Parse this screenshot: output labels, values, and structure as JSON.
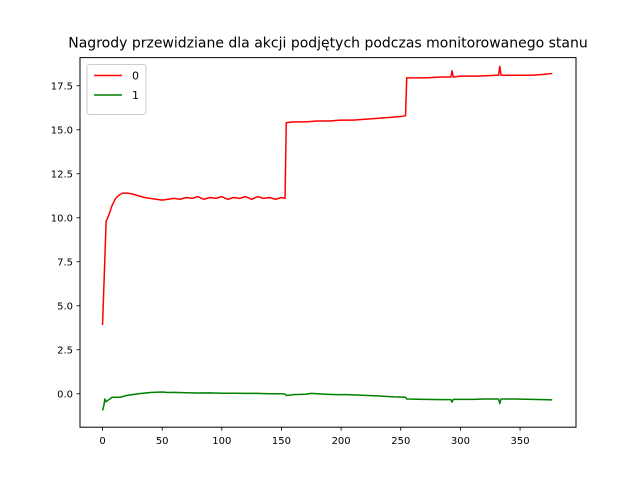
{
  "chart_data": {
    "type": "line",
    "title": "Nagrody przewidziane dla akcji podjętych podczas monitorowanego stanu",
    "xlabel": "",
    "ylabel": "",
    "xlim": [
      -18.9,
      396.9
    ],
    "ylim": [
      -1.9,
      19.1
    ],
    "xticks": [
      0,
      50,
      100,
      150,
      200,
      250,
      300,
      350
    ],
    "yticks": [
      0.0,
      2.5,
      5.0,
      7.5,
      10.0,
      12.5,
      15.0,
      17.5
    ],
    "ytick_labels": [
      "0.0",
      "2.5",
      "5.0",
      "7.5",
      "10.0",
      "12.5",
      "15.0",
      "17.5"
    ],
    "grid": false,
    "legend_position": "top-left",
    "series": [
      {
        "name": "0",
        "color": "#ff0000",
        "points": [
          [
            0,
            3.9
          ],
          [
            2,
            7.8
          ],
          [
            3,
            9.8
          ],
          [
            5,
            10.1
          ],
          [
            8,
            10.7
          ],
          [
            11,
            11.1
          ],
          [
            14,
            11.3
          ],
          [
            17,
            11.4
          ],
          [
            21,
            11.4
          ],
          [
            25,
            11.35
          ],
          [
            30,
            11.25
          ],
          [
            35,
            11.15
          ],
          [
            40,
            11.1
          ],
          [
            45,
            11.05
          ],
          [
            50,
            11.0
          ],
          [
            55,
            11.05
          ],
          [
            60,
            11.1
          ],
          [
            65,
            11.05
          ],
          [
            70,
            11.15
          ],
          [
            75,
            11.1
          ],
          [
            80,
            11.2
          ],
          [
            85,
            11.05
          ],
          [
            90,
            11.15
          ],
          [
            95,
            11.1
          ],
          [
            100,
            11.2
          ],
          [
            105,
            11.05
          ],
          [
            110,
            11.15
          ],
          [
            115,
            11.1
          ],
          [
            120,
            11.2
          ],
          [
            125,
            11.05
          ],
          [
            130,
            11.2
          ],
          [
            135,
            11.1
          ],
          [
            140,
            11.15
          ],
          [
            145,
            11.05
          ],
          [
            150,
            11.15
          ],
          [
            153,
            11.1
          ],
          [
            154,
            15.4
          ],
          [
            160,
            15.45
          ],
          [
            170,
            15.45
          ],
          [
            180,
            15.5
          ],
          [
            190,
            15.5
          ],
          [
            200,
            15.55
          ],
          [
            210,
            15.55
          ],
          [
            220,
            15.6
          ],
          [
            230,
            15.65
          ],
          [
            240,
            15.7
          ],
          [
            250,
            15.75
          ],
          [
            254,
            15.8
          ],
          [
            255,
            17.95
          ],
          [
            270,
            17.95
          ],
          [
            285,
            18.0
          ],
          [
            292,
            18.0
          ],
          [
            293,
            18.35
          ],
          [
            294,
            18.0
          ],
          [
            300,
            18.05
          ],
          [
            315,
            18.05
          ],
          [
            330,
            18.1
          ],
          [
            332,
            18.1
          ],
          [
            333,
            18.6
          ],
          [
            334,
            18.1
          ],
          [
            345,
            18.1
          ],
          [
            360,
            18.1
          ],
          [
            370,
            18.15
          ],
          [
            377,
            18.2
          ]
        ]
      },
      {
        "name": "1",
        "color": "#008000",
        "points": [
          [
            0,
            -0.95
          ],
          [
            1,
            -0.7
          ],
          [
            2,
            -0.3
          ],
          [
            3,
            -0.45
          ],
          [
            5,
            -0.35
          ],
          [
            8,
            -0.2
          ],
          [
            15,
            -0.2
          ],
          [
            20,
            -0.1
          ],
          [
            30,
            0.0
          ],
          [
            40,
            0.07
          ],
          [
            50,
            0.1
          ],
          [
            55,
            0.07
          ],
          [
            60,
            0.08
          ],
          [
            70,
            0.06
          ],
          [
            80,
            0.04
          ],
          [
            90,
            0.05
          ],
          [
            100,
            0.03
          ],
          [
            110,
            0.03
          ],
          [
            120,
            0.02
          ],
          [
            130,
            0.02
          ],
          [
            140,
            0.0
          ],
          [
            150,
            0.0
          ],
          [
            153,
            -0.02
          ],
          [
            154,
            -0.1
          ],
          [
            160,
            -0.05
          ],
          [
            170,
            -0.03
          ],
          [
            175,
            0.02
          ],
          [
            185,
            -0.02
          ],
          [
            195,
            -0.05
          ],
          [
            205,
            -0.05
          ],
          [
            215,
            -0.08
          ],
          [
            230,
            -0.12
          ],
          [
            245,
            -0.18
          ],
          [
            254,
            -0.2
          ],
          [
            255,
            -0.3
          ],
          [
            270,
            -0.32
          ],
          [
            285,
            -0.33
          ],
          [
            292,
            -0.33
          ],
          [
            293,
            -0.48
          ],
          [
            294,
            -0.32
          ],
          [
            310,
            -0.32
          ],
          [
            320,
            -0.3
          ],
          [
            332,
            -0.3
          ],
          [
            333,
            -0.55
          ],
          [
            334,
            -0.3
          ],
          [
            345,
            -0.3
          ],
          [
            360,
            -0.32
          ],
          [
            370,
            -0.33
          ],
          [
            377,
            -0.35
          ]
        ]
      }
    ]
  }
}
